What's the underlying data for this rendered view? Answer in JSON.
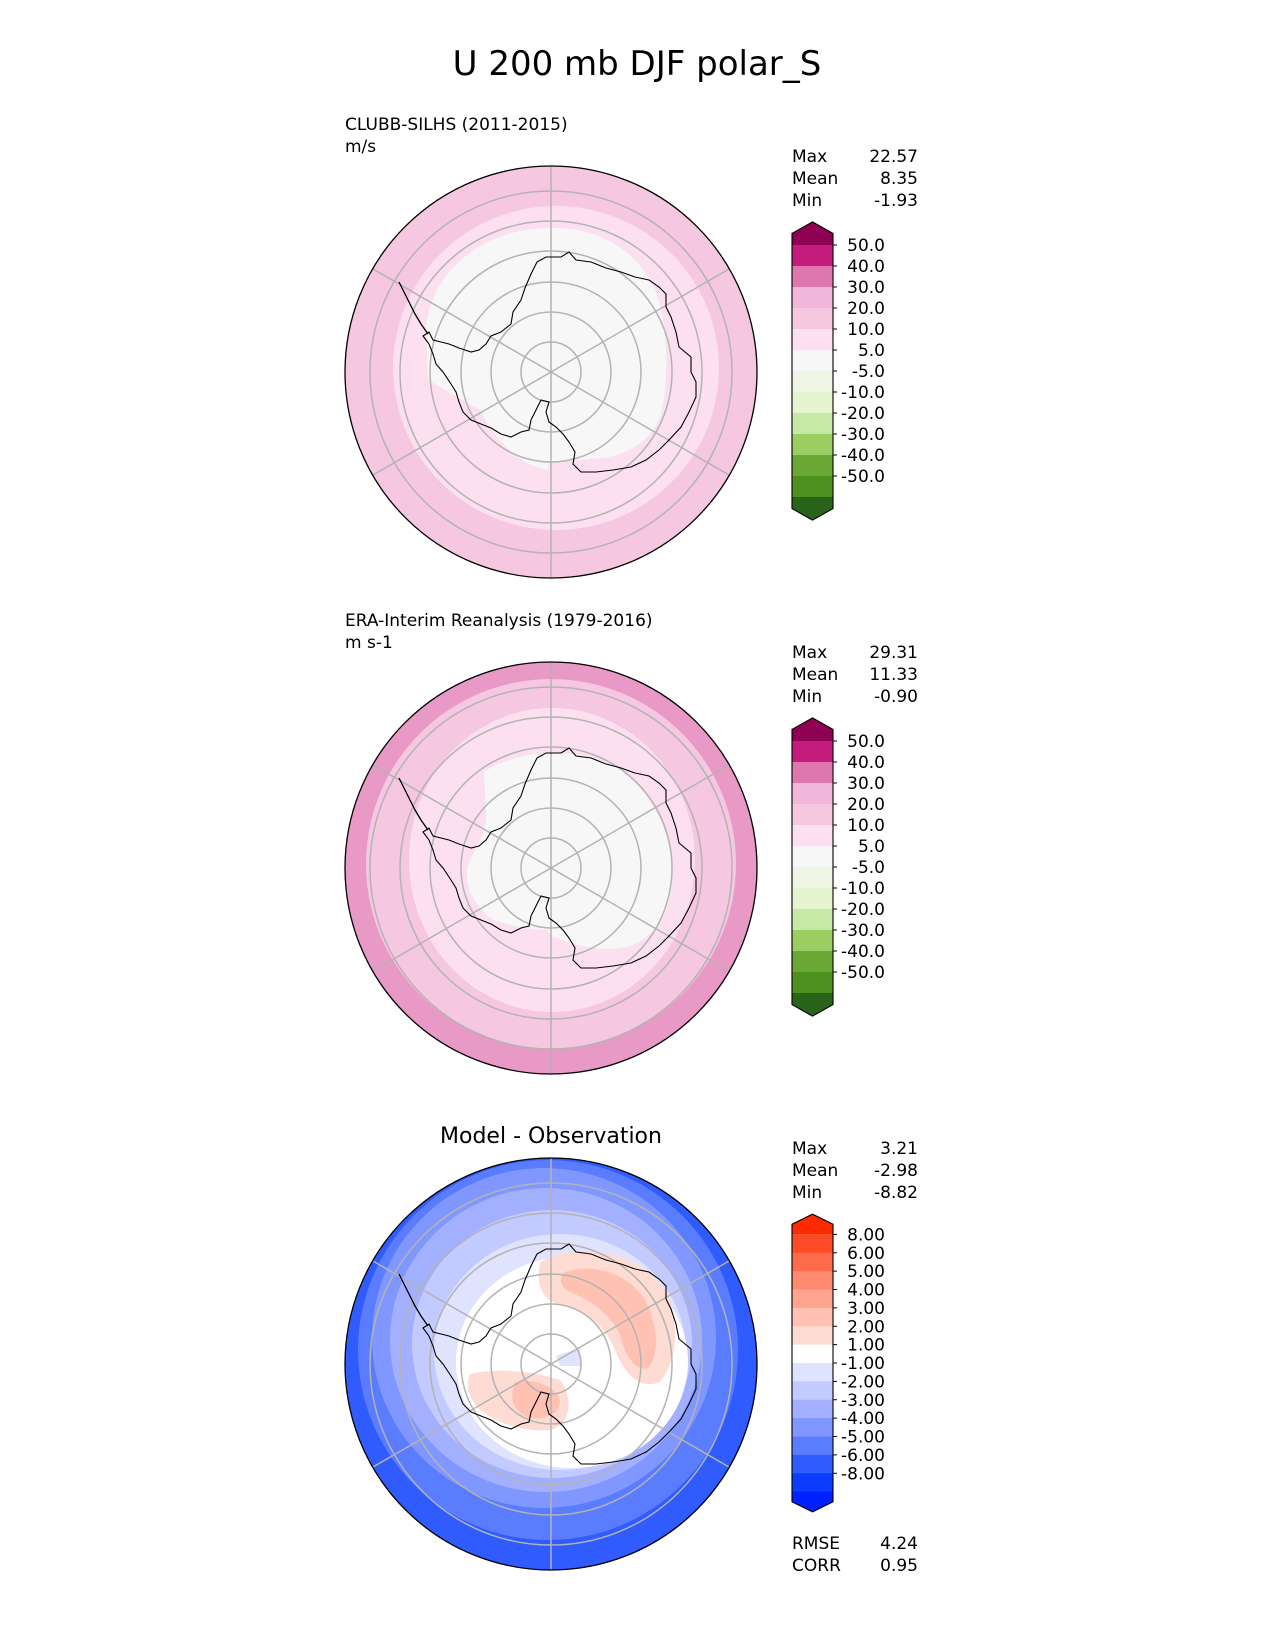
{
  "figure": {
    "title": "U 200 mb DJF polar_S"
  },
  "panels": [
    {
      "id": "model",
      "heading": "CLUBB-SILHS (2011-2015)",
      "units": "m/s",
      "stats": [
        {
          "label": "Max",
          "value": "22.57"
        },
        {
          "label": "Mean",
          "value": "8.35"
        },
        {
          "label": "Min",
          "value": "-1.93"
        }
      ]
    },
    {
      "id": "obs",
      "heading": "ERA-Interim Reanalysis (1979-2016)",
      "units": "m s-1",
      "stats": [
        {
          "label": "Max",
          "value": "29.31"
        },
        {
          "label": "Mean",
          "value": "11.33"
        },
        {
          "label": "Min",
          "value": "-0.90"
        }
      ]
    },
    {
      "id": "diff",
      "heading": "Model - Observation",
      "stats": [
        {
          "label": "Max",
          "value": "3.21"
        },
        {
          "label": "Mean",
          "value": "-2.98"
        },
        {
          "label": "Min",
          "value": "-8.82"
        }
      ],
      "metrics": [
        {
          "label": "RMSE",
          "value": "4.24"
        },
        {
          "label": "CORR",
          "value": "0.95"
        }
      ]
    }
  ],
  "chart_data": [
    {
      "type": "heatmap",
      "projection": "south-polar-stereographic",
      "title": "CLUBB-SILHS (2011-2015)",
      "units": "m/s",
      "colorbar": {
        "ticks": [
          "50.0",
          "40.0",
          "30.0",
          "20.0",
          "10.0",
          "5.0",
          "-5.0",
          "-10.0",
          "-20.0",
          "-30.0",
          "-40.0",
          "-50.0"
        ],
        "colors": [
          "#8e0152",
          "#c51b7d",
          "#de77ae",
          "#f1b6da",
          "#f5c7e1",
          "#fde0ef",
          "#f7f7f7",
          "#eef5e3",
          "#e6f5d0",
          "#c7e9a6",
          "#9ccd63",
          "#6ba734",
          "#4d9221",
          "#276419"
        ]
      },
      "zones": [
        {
          "range": "0-5 m/s",
          "color": "#f7f7f7"
        },
        {
          "range": "5-10 m/s",
          "color": "#fde0ef"
        },
        {
          "range": "10-20 m/s",
          "color": "#f5c7e1"
        }
      ]
    },
    {
      "type": "heatmap",
      "projection": "south-polar-stereographic",
      "title": "ERA-Interim Reanalysis (1979-2016)",
      "units": "m s-1",
      "colorbar": {
        "ticks": [
          "50.0",
          "40.0",
          "30.0",
          "20.0",
          "10.0",
          "5.0",
          "-5.0",
          "-10.0",
          "-20.0",
          "-30.0",
          "-40.0",
          "-50.0"
        ],
        "colors": [
          "#8e0152",
          "#c51b7d",
          "#de77ae",
          "#f1b6da",
          "#f5c7e1",
          "#fde0ef",
          "#f7f7f7",
          "#eef5e3",
          "#e6f5d0",
          "#c7e9a6",
          "#9ccd63",
          "#6ba734",
          "#4d9221",
          "#276419"
        ]
      },
      "zones": [
        {
          "range": "0-5 m/s",
          "color": "#f7f7f7"
        },
        {
          "range": "5-10 m/s",
          "color": "#fde0ef"
        },
        {
          "range": "10-20 m/s",
          "color": "#f5c7e1"
        },
        {
          "range": "20-30 m/s",
          "color": "#e899c6"
        }
      ]
    },
    {
      "type": "heatmap",
      "projection": "south-polar-stereographic",
      "title": "Model - Observation",
      "colorbar": {
        "ticks": [
          "8.00",
          "6.00",
          "5.00",
          "4.00",
          "3.00",
          "2.00",
          "1.00",
          "-1.00",
          "-2.00",
          "-3.00",
          "-4.00",
          "-5.00",
          "-6.00",
          "-8.00"
        ],
        "colors": [
          "#fe2a00",
          "#ff4a28",
          "#ff6a4b",
          "#ff8a6f",
          "#ffa58f",
          "#ffc1b1",
          "#ffdcd3",
          "#ffffff",
          "#dfe3fd",
          "#c2caff",
          "#a2b0ff",
          "#8097ff",
          "#5a7cff",
          "#2f5bff",
          "#0b3cff",
          "#0021ff"
        ]
      },
      "zones": [
        {
          "range": "-1 to 1",
          "color": "#ffffff"
        },
        {
          "range": "1 to 3",
          "color": "#ffc7b7"
        },
        {
          "range": "-1 to -2",
          "color": "#dfe3fd"
        },
        {
          "range": "-3 to -5",
          "color": "#a2b0ff"
        },
        {
          "range": "-6 to -8",
          "color": "#2f5bff"
        }
      ]
    }
  ]
}
